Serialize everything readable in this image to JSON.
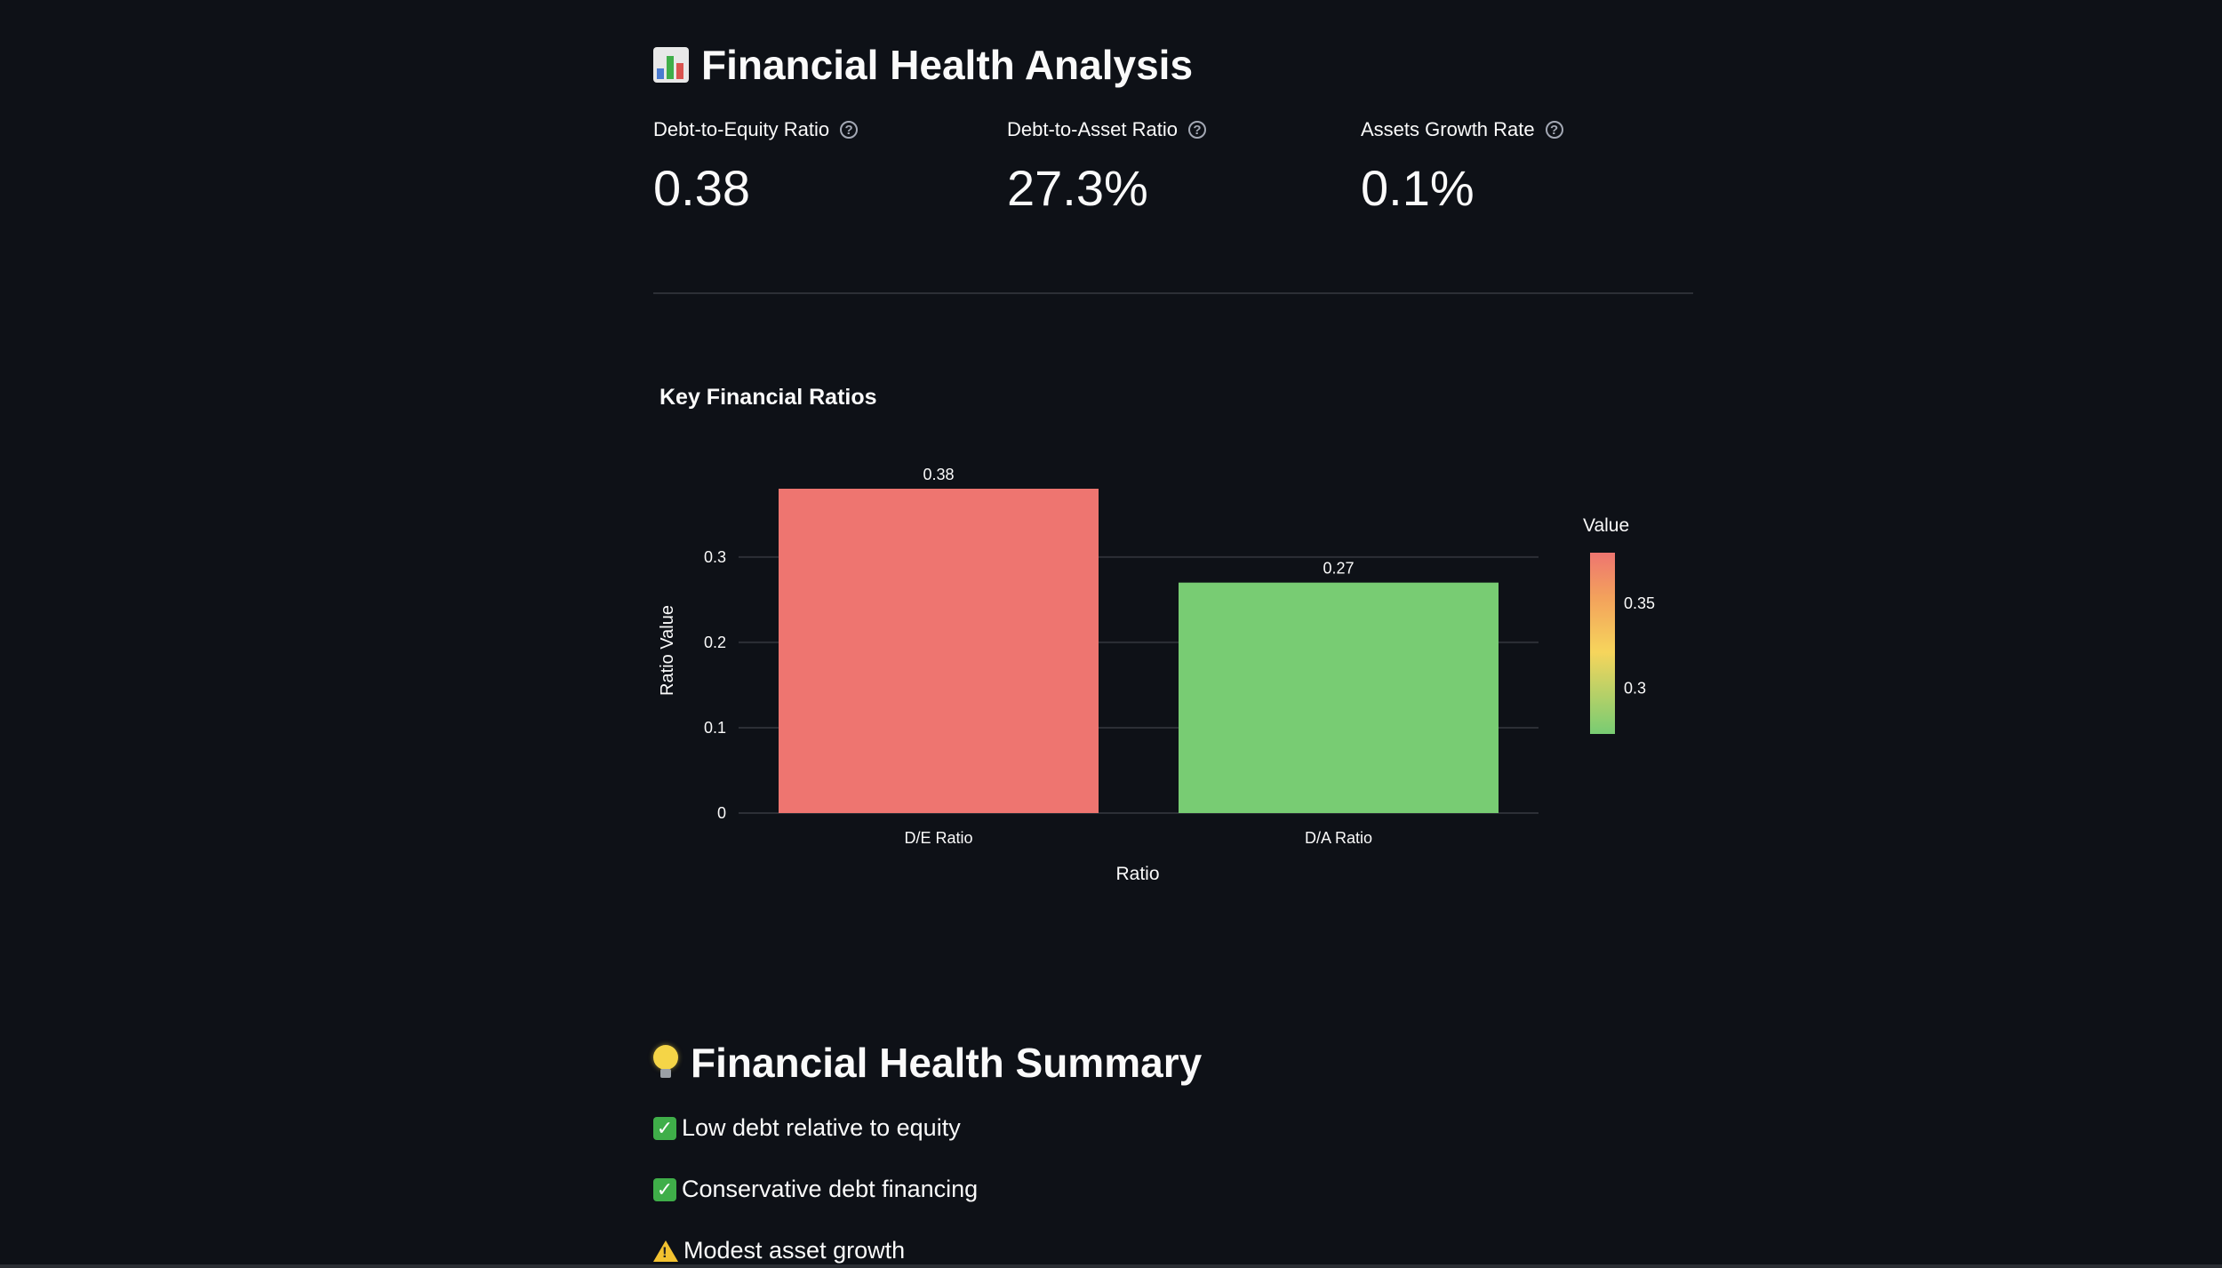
{
  "header": {
    "title": "Financial Health Analysis",
    "icon": "bar-chart-icon"
  },
  "metrics": [
    {
      "label": "Debt-to-Equity Ratio",
      "value": "0.38"
    },
    {
      "label": "Debt-to-Asset Ratio",
      "value": "27.3%"
    },
    {
      "label": "Assets Growth Rate",
      "value": "0.1%"
    }
  ],
  "help_symbol": "?",
  "chart_title": "Key Financial Ratios",
  "chart_data": {
    "type": "bar",
    "title": "Key Financial Ratios",
    "categories": [
      "D/E Ratio",
      "D/A Ratio"
    ],
    "values": [
      0.38,
      0.27
    ],
    "data_labels": [
      "0.38",
      "0.27"
    ],
    "xlabel": "Ratio",
    "ylabel": "Ratio Value",
    "ylim": [
      0,
      0.38
    ],
    "yticks": [
      0,
      0.1,
      0.2,
      0.3
    ],
    "ytick_labels": [
      "0",
      "0.1",
      "0.2",
      "0.3"
    ],
    "grid": true,
    "colorbar": {
      "title": "Value",
      "range": [
        0.273,
        0.38
      ],
      "ticks": [
        0.3,
        0.35
      ],
      "tick_labels": [
        "0.3",
        "0.35"
      ],
      "colors": [
        "#78cc73",
        "#f6d55c",
        "#f3a25c",
        "#ee7570"
      ]
    },
    "bar_colors": [
      "#ee7570",
      "#78cc73"
    ]
  },
  "summary": {
    "title": "Financial Health Summary",
    "icon": "lightbulb-icon",
    "items": [
      {
        "icon": "check-icon",
        "text": "Low debt relative to equity"
      },
      {
        "icon": "check-icon",
        "text": "Conservative debt financing"
      },
      {
        "icon": "warning-icon",
        "text": "Modest asset growth"
      }
    ]
  },
  "colors": {
    "background": "#0e1117",
    "text": "#fafafa",
    "grid": "#2c2f36"
  }
}
